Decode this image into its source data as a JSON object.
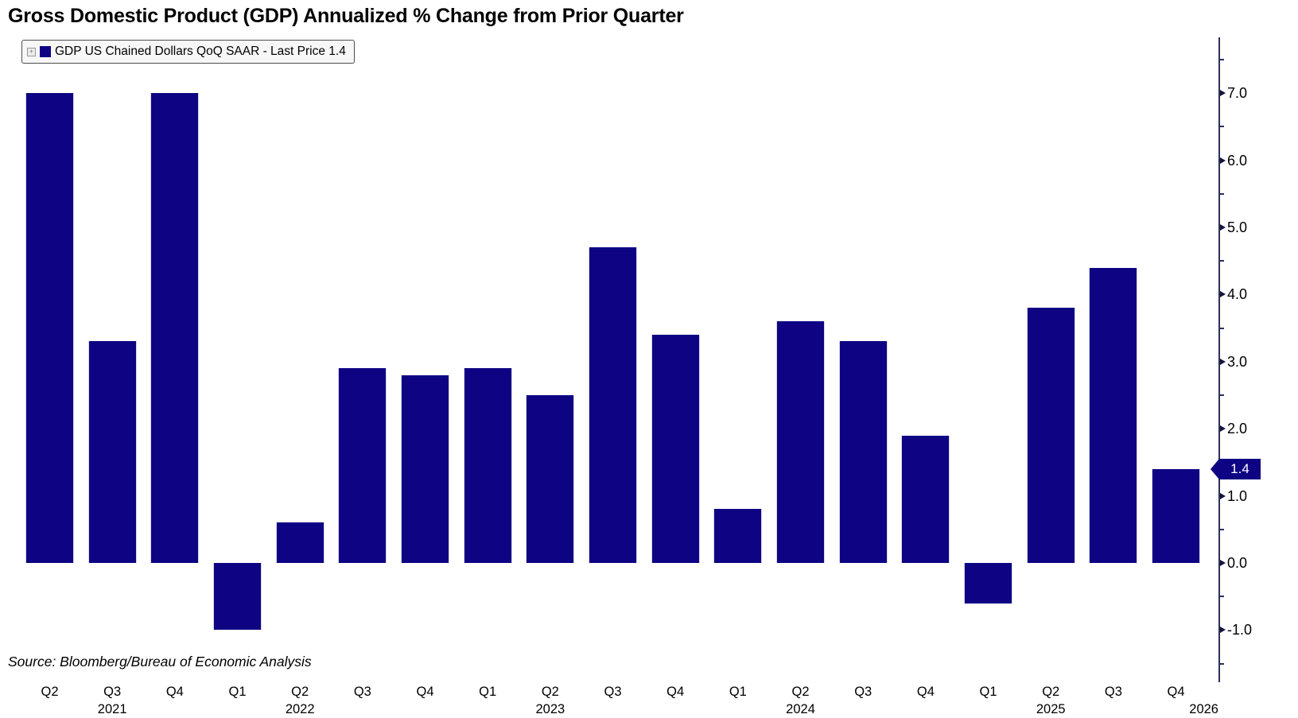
{
  "title": "Gross Domestic Product (GDP) Annualized % Change from Prior Quarter",
  "legend": {
    "expand_icon": "+",
    "label": "GDP US Chained Dollars QoQ SAAR - Last Price 1.4"
  },
  "source_note": "Source: Bloomberg/Bureau of Economic Analysis",
  "colors": {
    "bar": "#0e0383",
    "axis": "#2e2e5e",
    "tick": "#14143a",
    "label_text": "#000000",
    "last_price_bg": "#0e0383",
    "last_price_text": "#ffffff",
    "legend_bg": "#f7f7f7",
    "legend_border": "#4d4d4d"
  },
  "chart_data": {
    "type": "bar",
    "title": "Gross Domestic Product (GDP) Annualized % Change from Prior Quarter",
    "series": [
      {
        "name": "GDP US Chained Dollars QoQ SAAR",
        "values": [
          7.0,
          3.3,
          7.0,
          -1.0,
          0.6,
          2.9,
          2.8,
          2.9,
          2.5,
          4.7,
          3.4,
          0.8,
          3.6,
          3.3,
          1.9,
          -0.6,
          3.8,
          4.4,
          1.4
        ]
      }
    ],
    "categories": [
      "Q2 2021",
      "Q3 2021",
      "Q4 2021",
      "Q1 2022",
      "Q2 2022",
      "Q3 2022",
      "Q4 2022",
      "Q1 2023",
      "Q2 2023",
      "Q3 2023",
      "Q4 2023",
      "Q1 2024",
      "Q2 2024",
      "Q3 2024",
      "Q4 2024",
      "Q1 2025",
      "Q2 2025",
      "Q3 2025",
      "Q4 2025"
    ],
    "x_tick_labels": [
      "Q2",
      "Q3",
      "Q4",
      "Q1",
      "Q2",
      "Q3",
      "Q4",
      "Q1",
      "Q2",
      "Q3",
      "Q4",
      "Q1",
      "Q2",
      "Q3",
      "Q4",
      "Q1",
      "Q2",
      "Q3",
      "Q4"
    ],
    "year_labels": [
      {
        "label": "2021",
        "bar_index": 1
      },
      {
        "label": "2022",
        "bar_index": 4
      },
      {
        "label": "2023",
        "bar_index": 8
      },
      {
        "label": "2024",
        "bar_index": 12
      },
      {
        "label": "2025",
        "bar_index": 16
      },
      {
        "label": "2026",
        "bar_index": null
      }
    ],
    "y_axis": {
      "side": "right",
      "tick_labels": [
        "7.0",
        "6.0",
        "5.0",
        "4.0",
        "3.0",
        "2.0",
        "1.0",
        "0.0",
        "-1.0"
      ],
      "minor_ticks": [
        7.5,
        6.5,
        5.5,
        4.5,
        3.5,
        2.5,
        1.5,
        0.5,
        -0.5,
        -1.5
      ],
      "range": [
        -1.8,
        7.8
      ]
    },
    "last_price": {
      "value": 1.4,
      "label": "1.4"
    },
    "legend_position": "top-left",
    "grid": false
  }
}
